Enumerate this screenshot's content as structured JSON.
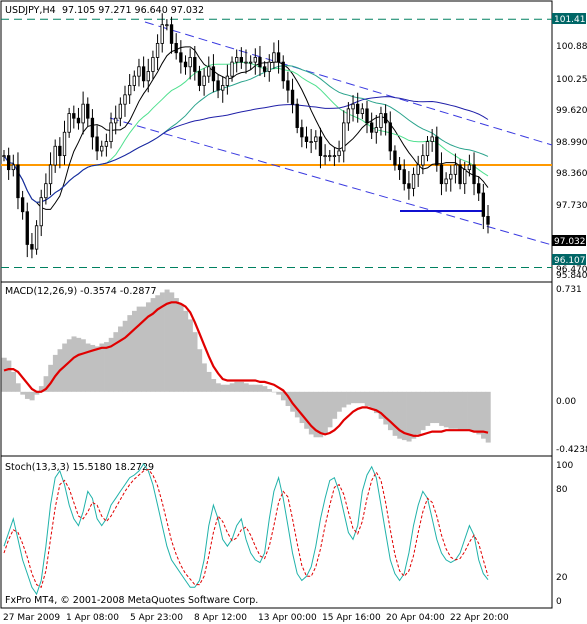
{
  "window": {
    "symbol_tf": "USDJPY,H4",
    "ohlc": "97.105 97.271 96.640 97.032",
    "copyright": "FxPro MT4, © 2001-2008 MetaQuotes Software Corp."
  },
  "colors": {
    "background": "#ffffff",
    "candle": "#000000",
    "ma_black": "#000000",
    "ma_navy": "#1f1fa8",
    "ma_teal": "#2aa38c",
    "ma_lightgreen": "#4fe08f",
    "channel": "#3a3ae0",
    "support_line": "#ff9900",
    "dashed_level": "#008060",
    "macd_hist": "#c0c0c0",
    "macd_signal": "#e00000",
    "stoch_main": "#20b2aa",
    "stoch_signal": "#e00000",
    "price_tag": "#006666",
    "current_tag": "#000000"
  },
  "price_panel": {
    "axis_ticks": [
      "100.880",
      "100.250",
      "99.620",
      "98.990",
      "98.360",
      "97.730",
      "96.470",
      "95.840"
    ],
    "top_level_tag": "101.416",
    "bottom_level_tag": "96.107",
    "current_price_tag": "97.032"
  },
  "macd_panel": {
    "header": "MACD(12,26,9) -0.3574 -0.2877",
    "axis_ticks": [
      "0.731",
      "0.00",
      "-0.4238"
    ]
  },
  "stoch_panel": {
    "header": "Stoch(13,3,3) 15.5180 18.2729",
    "axis_ticks": [
      "100",
      "80",
      "20",
      "0"
    ]
  },
  "time_axis": [
    "27 Mar 2009",
    "1 Apr 08:00",
    "5 Apr 23:00",
    "8 Apr 12:00",
    "13 Apr 00:00",
    "15 Apr 16:00",
    "20 Apr 04:00",
    "22 Apr 20:00"
  ],
  "chart_data": [
    {
      "type": "candlestick",
      "title": "USDJPY,H4",
      "ylim": [
        95.84,
        101.7
      ],
      "levels": [
        101.416,
        96.107,
        98.3
      ],
      "current": 97.032,
      "closes": [
        98.5,
        98.2,
        98.3,
        97.6,
        97.3,
        96.6,
        96.5,
        97.0,
        97.6,
        97.9,
        98.3,
        98.7,
        98.5,
        99.0,
        99.4,
        99.3,
        99.2,
        99.6,
        99.3,
        98.9,
        98.6,
        98.7,
        98.8,
        99.2,
        99.3,
        99.6,
        99.8,
        100.0,
        100.2,
        100.4,
        100.1,
        100.3,
        100.6,
        100.9,
        101.3,
        101.3,
        100.9,
        100.7,
        100.5,
        100.4,
        100.6,
        100.3,
        100.0,
        100.2,
        100.4,
        100.1,
        99.9,
        100.0,
        100.2,
        100.5,
        100.6,
        100.5,
        100.5,
        100.5,
        100.6,
        100.4,
        100.3,
        100.5,
        100.7,
        100.5,
        100.1,
        99.9,
        99.6,
        99.1,
        98.9,
        98.8,
        98.8,
        98.9,
        98.5,
        98.5,
        98.5,
        98.5,
        98.6,
        99.2,
        99.5,
        99.6,
        99.4,
        99.5,
        99.2,
        99.0,
        99.1,
        99.4,
        99.2,
        98.6,
        98.3,
        98.2,
        97.9,
        97.8,
        98.1,
        98.3,
        98.5,
        98.8,
        98.9,
        98.3,
        97.9,
        98.0,
        98.1,
        98.3,
        97.9,
        98.2,
        98.3,
        97.9,
        97.7,
        97.2,
        97.032
      ]
    },
    {
      "type": "macd",
      "title": "MACD(12,26,9)",
      "main": -0.3574,
      "signal": -0.2877,
      "ylim": [
        -0.4238,
        0.731
      ],
      "histogram": [
        0.24,
        0.22,
        0.14,
        0.06,
        -0.02,
        -0.05,
        -0.06,
        -0.02,
        0.04,
        0.11,
        0.19,
        0.26,
        0.3,
        0.34,
        0.37,
        0.39,
        0.38,
        0.37,
        0.34,
        0.33,
        0.32,
        0.34,
        0.35,
        0.38,
        0.42,
        0.46,
        0.5,
        0.54,
        0.57,
        0.6,
        0.6,
        0.63,
        0.66,
        0.68,
        0.7,
        0.72,
        0.7,
        0.66,
        0.62,
        0.57,
        0.51,
        0.42,
        0.3,
        0.2,
        0.14,
        0.09,
        0.06,
        0.05,
        0.05,
        0.06,
        0.07,
        0.07,
        0.06,
        0.05,
        0.05,
        0.05,
        0.04,
        0.02,
        0.0,
        -0.02,
        -0.06,
        -0.1,
        -0.14,
        -0.18,
        -0.22,
        -0.26,
        -0.3,
        -0.32,
        -0.32,
        -0.3,
        -0.25,
        -0.19,
        -0.14,
        -0.11,
        -0.09,
        -0.08,
        -0.08,
        -0.08,
        -0.1,
        -0.12,
        -0.15,
        -0.19,
        -0.23,
        -0.27,
        -0.31,
        -0.33,
        -0.34,
        -0.35,
        -0.33,
        -0.3,
        -0.27,
        -0.24,
        -0.22,
        -0.22,
        -0.24,
        -0.25,
        -0.26,
        -0.26,
        -0.27,
        -0.27,
        -0.27,
        -0.28,
        -0.3,
        -0.33,
        -0.3574
      ],
      "signal_line": [
        0.15,
        0.16,
        0.16,
        0.14,
        0.1,
        0.06,
        0.02,
        0.0,
        0.0,
        0.02,
        0.06,
        0.11,
        0.15,
        0.18,
        0.21,
        0.24,
        0.26,
        0.27,
        0.28,
        0.29,
        0.3,
        0.31,
        0.31,
        0.32,
        0.34,
        0.36,
        0.38,
        0.41,
        0.44,
        0.47,
        0.5,
        0.53,
        0.55,
        0.58,
        0.6,
        0.62,
        0.63,
        0.63,
        0.62,
        0.6,
        0.56,
        0.49,
        0.41,
        0.33,
        0.25,
        0.18,
        0.13,
        0.09,
        0.08,
        0.08,
        0.08,
        0.08,
        0.08,
        0.08,
        0.08,
        0.07,
        0.07,
        0.06,
        0.05,
        0.03,
        0.01,
        -0.03,
        -0.08,
        -0.12,
        -0.16,
        -0.2,
        -0.24,
        -0.27,
        -0.29,
        -0.3,
        -0.29,
        -0.27,
        -0.24,
        -0.2,
        -0.17,
        -0.14,
        -0.12,
        -0.11,
        -0.11,
        -0.12,
        -0.13,
        -0.15,
        -0.18,
        -0.21,
        -0.24,
        -0.27,
        -0.29,
        -0.3,
        -0.31,
        -0.31,
        -0.3,
        -0.29,
        -0.28,
        -0.28,
        -0.28,
        -0.27,
        -0.27,
        -0.27,
        -0.27,
        -0.27,
        -0.27,
        -0.28,
        -0.28,
        -0.28,
        -0.2877
      ]
    },
    {
      "type": "stochastic",
      "title": "Stoch(13,3,3)",
      "main": 15.518,
      "signal": 18.2729,
      "ylim": [
        0,
        100
      ],
      "k_line": [
        40,
        50,
        60,
        45,
        30,
        20,
        10,
        5,
        15,
        40,
        70,
        90,
        95,
        85,
        70,
        60,
        55,
        65,
        80,
        75,
        60,
        55,
        60,
        70,
        75,
        80,
        85,
        90,
        92,
        95,
        100,
        95,
        85,
        70,
        55,
        40,
        30,
        25,
        20,
        15,
        10,
        10,
        15,
        30,
        55,
        70,
        60,
        45,
        40,
        45,
        55,
        60,
        45,
        35,
        30,
        28,
        35,
        60,
        80,
        90,
        75,
        55,
        35,
        20,
        15,
        18,
        25,
        40,
        60,
        75,
        88,
        90,
        80,
        65,
        50,
        45,
        55,
        80,
        92,
        98,
        90,
        70,
        50,
        30,
        20,
        15,
        20,
        35,
        55,
        70,
        80,
        75,
        60,
        45,
        35,
        30,
        28,
        30,
        35,
        45,
        55,
        48,
        30,
        20,
        15.518
      ],
      "d_line": [
        35,
        45,
        52,
        50,
        42,
        32,
        20,
        12,
        10,
        22,
        45,
        68,
        85,
        88,
        82,
        72,
        62,
        60,
        65,
        72,
        70,
        62,
        58,
        62,
        68,
        74,
        80,
        85,
        89,
        92,
        95,
        96,
        92,
        84,
        72,
        58,
        44,
        34,
        26,
        20,
        16,
        12,
        12,
        18,
        33,
        50,
        62,
        58,
        50,
        44,
        46,
        52,
        54,
        48,
        40,
        33,
        31,
        40,
        55,
        72,
        80,
        76,
        60,
        42,
        26,
        18,
        18,
        25,
        38,
        55,
        70,
        83,
        85,
        78,
        65,
        53,
        49,
        58,
        75,
        88,
        94,
        88,
        72,
        52,
        34,
        22,
        18,
        22,
        33,
        50,
        65,
        75,
        72,
        62,
        48,
        38,
        32,
        30,
        31,
        36,
        43,
        48,
        42,
        30,
        18.2729
      ]
    }
  ]
}
